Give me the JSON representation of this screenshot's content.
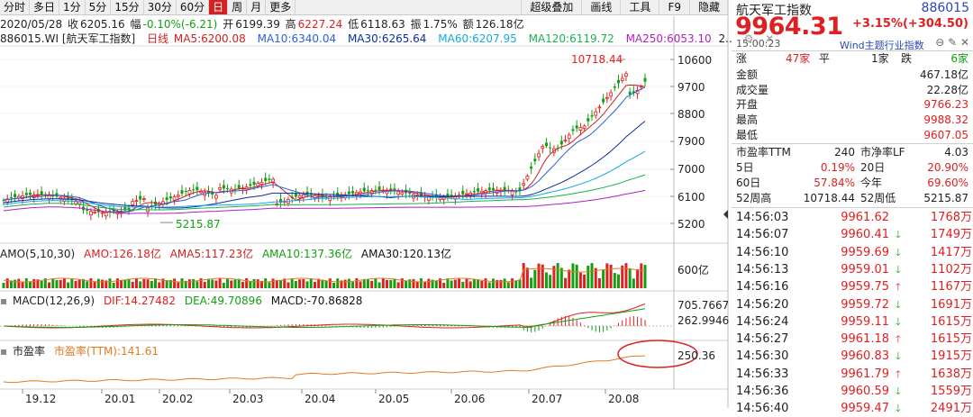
{
  "toolbar": {
    "periods": [
      "分时",
      "多日",
      "1分",
      "5分",
      "15分",
      "30分",
      "60分",
      "日",
      "周",
      "月",
      "更多"
    ],
    "active": "日",
    "right": [
      "超级叠加",
      "画线",
      "工具",
      "F9",
      "隐藏"
    ]
  },
  "info": {
    "date": "2020/05/28",
    "close_label": "收",
    "close": "6205.16",
    "pct_label": "幅",
    "pct": "-0.10%(-6.21)",
    "open_label": "开",
    "open": "6199.39",
    "high_label": "高",
    "high": "6227.24",
    "low_label": "低",
    "low": "6118.63",
    "amp_label": "振",
    "amp": "1.75%",
    "amount_label": "额",
    "amount": "126.18亿"
  },
  "ma_line": {
    "code": "886015.WI",
    "name": "[航天军工指数]",
    "kline": "日线",
    "ma5": "MA5:6200.08",
    "ma10": "MA10:6340.04",
    "ma30": "MA30:6265.64",
    "ma60": "MA60:6207.95",
    "ma120": "MA120:6119.72",
    "ma250": "MA250:6053.10",
    "more": "2.."
  },
  "colors": {
    "up": "#e02020",
    "down": "#12a012",
    "ma5": "#d02020",
    "ma10": "#2a5fe0",
    "ma30": "#0a2fa0",
    "ma60": "#18a8e0",
    "ma120": "#1bb050",
    "ma250": "#b020c0",
    "pe": "#e07a20",
    "macd_dif": "#e02020",
    "macd_dea": "#12a012"
  },
  "price_axis": [
    "10600",
    "9700",
    "8800",
    "7900",
    "7000",
    "6100",
    "5200"
  ],
  "max_label": "10718.44",
  "min_label": "5215.87",
  "amo": {
    "title": "AMO(5,10,30)",
    "amo": "AMO:126.18亿",
    "amo5": "AMA5:117.23亿",
    "amo10": "AMA10:137.36亿",
    "amo30": "AMA30:120.13亿",
    "axis": "600亿"
  },
  "macd": {
    "title": "MACD(12,26,9)",
    "dif": "DIF:14.27482",
    "dea": "DEA:49.70896",
    "macd": "MACD:-70.86828",
    "axis_top": "705.7667",
    "axis_mid": "262.9946"
  },
  "pe_panel": {
    "title": "市盈率",
    "value": "市盈率(TTM):141.61",
    "axis": "250.36"
  },
  "dates": [
    "19.12",
    "20.01",
    "20.02",
    "20.03",
    "20.04",
    "20.05",
    "20.06",
    "20.07",
    "20.08"
  ],
  "right_panel": {
    "title": "航天军工指数",
    "code": "886015",
    "price": "9964.31",
    "change": "+3.15%(+304.50)",
    "time": "15:00:23",
    "wind": "Wind主题行业指数",
    "icons": "⊖ ✎ ✕",
    "stats": {
      "zhang": "涨",
      "zhang_n": "47家",
      "ping": "平",
      "ping_n": "1家",
      "die": "跌",
      "die_n": "6家",
      "amount_l": "金额",
      "amount_v": "467.18亿",
      "vol_l": "成交量",
      "vol_v": "22.28亿",
      "open_l": "开盘",
      "open_v": "9766.23",
      "high_l": "最高",
      "high_v": "9988.32",
      "low_l": "最低",
      "low_v": "9607.05",
      "pe_l": "市盈率TTM",
      "pe_v": "240",
      "pb_l": "市净率LF",
      "pb_v": "4.03",
      "d5_l": "5日",
      "d5_v": "0.19%",
      "d20_l": "20日",
      "d20_v": "20.90%",
      "d60_l": "60日",
      "d60_v": "57.84%",
      "ytd_l": "今年",
      "ytd_v": "69.60%",
      "w52h_l": "52周高",
      "w52h_v": "10718.44",
      "w52l_l": "52周低",
      "w52l_v": "5215.87"
    },
    "ticks": [
      {
        "t": "14:56:03",
        "p": "9961.62",
        "a": "",
        "v": "1768万"
      },
      {
        "t": "14:56:07",
        "p": "9960.41",
        "a": "down",
        "v": "1749万"
      },
      {
        "t": "14:56:10",
        "p": "9959.69",
        "a": "down",
        "v": "1417万"
      },
      {
        "t": "14:56:13",
        "p": "9959.01",
        "a": "down",
        "v": "1102万"
      },
      {
        "t": "14:56:16",
        "p": "9959.75",
        "a": "up",
        "v": "1167万"
      },
      {
        "t": "14:56:20",
        "p": "9959.72",
        "a": "down",
        "v": "1691万"
      },
      {
        "t": "14:56:24",
        "p": "9959.11",
        "a": "down",
        "v": "1615万"
      },
      {
        "t": "14:56:27",
        "p": "9961.18",
        "a": "up",
        "v": "1615万"
      },
      {
        "t": "14:56:30",
        "p": "9960.83",
        "a": "down",
        "v": "1915万"
      },
      {
        "t": "14:56:33",
        "p": "9961.79",
        "a": "up",
        "v": "1638万"
      },
      {
        "t": "14:56:36",
        "p": "9960.59",
        "a": "down",
        "v": "1559万"
      },
      {
        "t": "14:56:40",
        "p": "9959.47",
        "a": "down",
        "v": "2491万"
      }
    ]
  }
}
